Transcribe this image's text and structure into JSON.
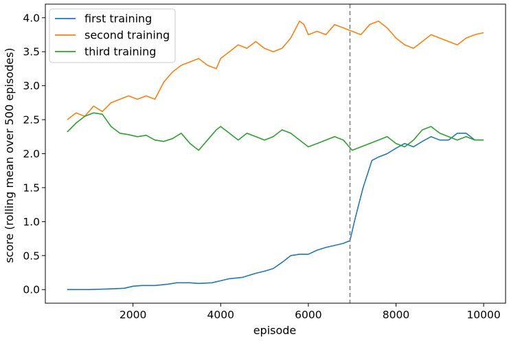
{
  "chart_data": {
    "type": "line",
    "title": "",
    "xlabel": "episode",
    "ylabel": "score (rolling mean over 500 episodes)",
    "xlim": [
      0,
      10500
    ],
    "ylim": [
      -0.2,
      4.2
    ],
    "grid": false,
    "legend_position": "top-left",
    "x_ticks": [
      2000,
      4000,
      6000,
      8000,
      10000
    ],
    "x_tick_labels": [
      "2000",
      "4000",
      "6000",
      "8000",
      "10000"
    ],
    "y_ticks": [
      0.0,
      0.5,
      1.0,
      1.5,
      2.0,
      2.5,
      3.0,
      3.5,
      4.0
    ],
    "y_tick_labels": [
      "0.0",
      "0.5",
      "1.0",
      "1.5",
      "2.0",
      "2.5",
      "3.0",
      "3.5",
      "4.0"
    ],
    "vline": {
      "x": 6950,
      "style": "dashed",
      "color": "#7f7f7f"
    },
    "series": [
      {
        "name": "first training",
        "color": "#1f77b4",
        "x": [
          500,
          1000,
          1500,
          1800,
          2000,
          2200,
          2500,
          2800,
          3000,
          3300,
          3500,
          3800,
          4000,
          4200,
          4500,
          4800,
          5000,
          5200,
          5400,
          5600,
          5800,
          6000,
          6200,
          6400,
          6600,
          6800,
          6950,
          7050,
          7150,
          7250,
          7350,
          7450,
          7600,
          7800,
          8000,
          8200,
          8400,
          8600,
          8800,
          9000,
          9200,
          9400,
          9600,
          9800,
          10000
        ],
        "y": [
          0.0,
          0.0,
          0.01,
          0.02,
          0.05,
          0.06,
          0.06,
          0.08,
          0.1,
          0.1,
          0.09,
          0.1,
          0.13,
          0.16,
          0.18,
          0.24,
          0.27,
          0.31,
          0.4,
          0.5,
          0.52,
          0.52,
          0.58,
          0.62,
          0.65,
          0.68,
          0.72,
          1.0,
          1.25,
          1.5,
          1.7,
          1.9,
          1.95,
          2.0,
          2.08,
          2.15,
          2.1,
          2.18,
          2.25,
          2.2,
          2.2,
          2.3,
          2.3,
          2.2,
          2.2
        ]
      },
      {
        "name": "second training",
        "color": "#ff7f0e",
        "x": [
          500,
          700,
          900,
          1100,
          1300,
          1500,
          1700,
          1900,
          2100,
          2300,
          2500,
          2700,
          2900,
          3100,
          3300,
          3500,
          3700,
          3900,
          4000,
          4200,
          4400,
          4600,
          4800,
          5000,
          5200,
          5400,
          5600,
          5800,
          5900,
          6000,
          6200,
          6400,
          6600,
          6800,
          7000,
          7200,
          7400,
          7600,
          7800,
          8000,
          8200,
          8400,
          8600,
          8800,
          9000,
          9200,
          9400,
          9600,
          9800,
          10000
        ],
        "y": [
          2.5,
          2.6,
          2.55,
          2.7,
          2.62,
          2.75,
          2.8,
          2.85,
          2.8,
          2.85,
          2.8,
          3.05,
          3.2,
          3.3,
          3.35,
          3.4,
          3.3,
          3.25,
          3.4,
          3.5,
          3.6,
          3.55,
          3.65,
          3.55,
          3.5,
          3.55,
          3.7,
          3.95,
          3.9,
          3.75,
          3.8,
          3.75,
          3.9,
          3.85,
          3.8,
          3.75,
          3.9,
          3.95,
          3.85,
          3.7,
          3.6,
          3.55,
          3.65,
          3.75,
          3.7,
          3.65,
          3.6,
          3.7,
          3.75,
          3.78
        ]
      },
      {
        "name": "third training",
        "color": "#2ca02c",
        "x": [
          500,
          700,
          900,
          1100,
          1300,
          1500,
          1700,
          1900,
          2100,
          2300,
          2500,
          2700,
          2900,
          3100,
          3300,
          3500,
          3700,
          3900,
          4000,
          4200,
          4400,
          4600,
          4800,
          5000,
          5200,
          5400,
          5600,
          5800,
          6000,
          6200,
          6400,
          6600,
          6800,
          7000,
          7200,
          7400,
          7600,
          7800,
          8000,
          8200,
          8400,
          8600,
          8800,
          9000,
          9200,
          9400,
          9600,
          9800,
          10000
        ],
        "y": [
          2.32,
          2.45,
          2.55,
          2.6,
          2.58,
          2.4,
          2.3,
          2.28,
          2.25,
          2.27,
          2.2,
          2.18,
          2.22,
          2.3,
          2.15,
          2.05,
          2.2,
          2.35,
          2.4,
          2.3,
          2.2,
          2.3,
          2.25,
          2.2,
          2.25,
          2.35,
          2.3,
          2.2,
          2.1,
          2.15,
          2.2,
          2.25,
          2.2,
          2.05,
          2.1,
          2.15,
          2.2,
          2.25,
          2.15,
          2.1,
          2.2,
          2.35,
          2.4,
          2.3,
          2.25,
          2.2,
          2.25,
          2.2,
          2.2
        ]
      }
    ]
  }
}
